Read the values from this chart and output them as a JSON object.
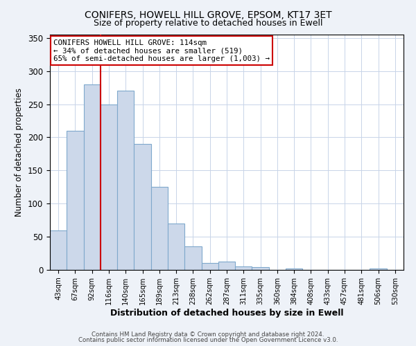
{
  "title": "CONIFERS, HOWELL HILL GROVE, EPSOM, KT17 3ET",
  "subtitle": "Size of property relative to detached houses in Ewell",
  "xlabel": "Distribution of detached houses by size in Ewell",
  "ylabel": "Number of detached properties",
  "bar_color": "#ccd8ea",
  "bar_edge_color": "#7fa8cc",
  "bin_labels": [
    "43sqm",
    "67sqm",
    "92sqm",
    "116sqm",
    "140sqm",
    "165sqm",
    "189sqm",
    "213sqm",
    "238sqm",
    "262sqm",
    "287sqm",
    "311sqm",
    "335sqm",
    "360sqm",
    "384sqm",
    "408sqm",
    "433sqm",
    "457sqm",
    "481sqm",
    "506sqm",
    "530sqm"
  ],
  "bar_values": [
    60,
    210,
    280,
    250,
    270,
    190,
    125,
    70,
    35,
    10,
    13,
    5,
    4,
    0,
    2,
    0,
    0,
    0,
    0,
    2,
    0
  ],
  "vline_x_index": 3,
  "vline_color": "#cc0000",
  "annotation_line1": "CONIFERS HOWELL HILL GROVE: 114sqm",
  "annotation_line2": "← 34% of detached houses are smaller (519)",
  "annotation_line3": "65% of semi-detached houses are larger (1,003) →",
  "annotation_box_color": "#ffffff",
  "annotation_box_edge_color": "#cc0000",
  "ylim": [
    0,
    355
  ],
  "yticks": [
    0,
    50,
    100,
    150,
    200,
    250,
    300,
    350
  ],
  "footer_line1": "Contains HM Land Registry data © Crown copyright and database right 2024.",
  "footer_line2": "Contains public sector information licensed under the Open Government Licence v3.0.",
  "background_color": "#eef2f8",
  "plot_bg_color": "#ffffff",
  "grid_color": "#c8d4e8"
}
